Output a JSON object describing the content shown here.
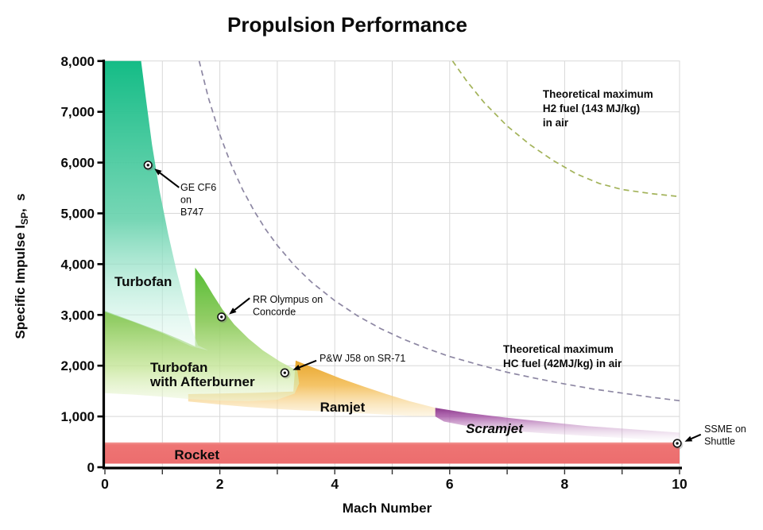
{
  "chart_data": {
    "type": "area",
    "title": "Propulsion Performance",
    "x_axis": {
      "label": "Mach Number",
      "min": 0,
      "max": 10,
      "gridline_step": 1,
      "tick_step": 1,
      "labeled_ticks": [
        0,
        2,
        4,
        6,
        8,
        10
      ]
    },
    "y_axis": {
      "label_main": "Specific Impulse I",
      "label_sub": "SP",
      "label_suffix": ",  s",
      "min": 0,
      "max": 8000,
      "gridline_step": 1000,
      "tick_labels": [
        {
          "value": 0,
          "text": "0"
        },
        {
          "value": 1000,
          "text": "1,000"
        },
        {
          "value": 2000,
          "text": "2,000"
        },
        {
          "value": 3000,
          "text": "3,000"
        },
        {
          "value": 4000,
          "text": "4,000"
        },
        {
          "value": 5000,
          "text": "5,000"
        },
        {
          "value": 6000,
          "text": "6,000"
        },
        {
          "value": 7000,
          "text": "7,000"
        },
        {
          "value": 8000,
          "text": "8,000"
        }
      ]
    },
    "colors": {
      "grid": "#d8d8d8",
      "axis": "#000000",
      "tick": "#333333",
      "h2_curve": "#a3b35a",
      "hc_curve": "#8d87a3",
      "callout_text": "#000000"
    },
    "regions": [
      {
        "name": "rocket",
        "label_lines": [
          "Rocket"
        ],
        "label_pos": [
          1.6,
          156
        ],
        "label_anchor": "middle",
        "italic": false,
        "points": [
          [
            0,
            490
          ],
          [
            10,
            490
          ],
          [
            10,
            70
          ],
          [
            0,
            70
          ]
        ],
        "stops": [
          [
            0,
            "#f29b97",
            1
          ],
          [
            0.12,
            "#ee7473",
            1
          ],
          [
            1,
            "#ec6d6e",
            1
          ]
        ]
      },
      {
        "name": "ramjet",
        "label_lines": [
          "Ramjet"
        ],
        "label_pos": [
          4.135,
          1095
        ],
        "label_anchor": "middle",
        "italic": false,
        "points": [
          [
            1.45,
            1440
          ],
          [
            2.0,
            1450
          ],
          [
            2.6,
            1465
          ],
          [
            3.28,
            1490
          ],
          [
            3.32,
            2100
          ],
          [
            3.7,
            1930
          ],
          [
            4.1,
            1750
          ],
          [
            4.5,
            1590
          ],
          [
            4.9,
            1440
          ],
          [
            5.3,
            1300
          ],
          [
            5.75,
            1170
          ],
          [
            5.78,
            1010
          ],
          [
            5.4,
            1005
          ],
          [
            5.0,
            1030
          ],
          [
            4.5,
            1060
          ],
          [
            4.0,
            1090
          ],
          [
            3.5,
            1115
          ],
          [
            3.0,
            1145
          ],
          [
            2.5,
            1185
          ],
          [
            2.0,
            1235
          ],
          [
            1.45,
            1295
          ]
        ],
        "stops": [
          [
            0,
            "#e8a62c",
            1
          ],
          [
            0.45,
            "#f4c160",
            0.95
          ],
          [
            1,
            "#fbeccb",
            0.5
          ]
        ]
      },
      {
        "name": "turbofan-afterburner",
        "label_lines": [
          "Turbofan",
          "with Afterburner"
        ],
        "label_pos": [
          0.788,
          1878
        ],
        "label_anchor": "start",
        "italic": false,
        "points": [
          [
            0,
            3080
          ],
          [
            0.5,
            2870
          ],
          [
            1.0,
            2660
          ],
          [
            1.3,
            2520
          ],
          [
            1.57,
            2380
          ],
          [
            1.57,
            3930
          ],
          [
            1.72,
            3700
          ],
          [
            1.88,
            3400
          ],
          [
            2.05,
            3100
          ],
          [
            2.25,
            2810
          ],
          [
            2.5,
            2530
          ],
          [
            2.75,
            2300
          ],
          [
            3.05,
            2080
          ],
          [
            3.35,
            1900
          ],
          [
            3.38,
            1650
          ],
          [
            3.3,
            1450
          ],
          [
            3.0,
            1330
          ],
          [
            2.5,
            1300
          ],
          [
            2.0,
            1310
          ],
          [
            1.5,
            1340
          ],
          [
            1.0,
            1390
          ],
          [
            0.5,
            1430
          ],
          [
            0,
            1460
          ]
        ],
        "stops": [
          [
            0,
            "#55bd33",
            1
          ],
          [
            0.4,
            "#8ecb5f",
            0.95
          ],
          [
            0.75,
            "#c6e699",
            0.8
          ],
          [
            1,
            "#ecf6d8",
            0.5
          ]
        ]
      },
      {
        "name": "turbofan",
        "label_lines": [
          "Turbofan"
        ],
        "label_pos": [
          0.166,
          3568
        ],
        "label_anchor": "start",
        "italic": false,
        "points": [
          [
            0,
            8000
          ],
          [
            0.63,
            8000
          ],
          [
            0.72,
            7200
          ],
          [
            0.82,
            6350
          ],
          [
            0.95,
            5450
          ],
          [
            1.1,
            4600
          ],
          [
            1.25,
            3850
          ],
          [
            1.4,
            3200
          ],
          [
            1.52,
            2700
          ],
          [
            1.62,
            2400
          ],
          [
            1.8,
            2300
          ],
          [
            1.5,
            2380
          ],
          [
            1.0,
            2640
          ],
          [
            0.5,
            2860
          ],
          [
            0,
            3060
          ]
        ],
        "stops": [
          [
            0,
            "#14bc86",
            1
          ],
          [
            0.55,
            "#68d2ad",
            0.9
          ],
          [
            0.85,
            "#bdeedd",
            0.55
          ],
          [
            1,
            "#e6f8f1",
            0.35
          ]
        ]
      },
      {
        "name": "scramjet",
        "label_lines": [
          "Scramjet"
        ],
        "label_pos": [
          6.777,
          673
        ],
        "label_anchor": "middle",
        "italic": true,
        "points": [
          [
            5.75,
            1170
          ],
          [
            6.3,
            1070
          ],
          [
            7.0,
            975
          ],
          [
            7.7,
            890
          ],
          [
            8.4,
            810
          ],
          [
            9.2,
            745
          ],
          [
            10,
            680
          ],
          [
            10,
            480
          ],
          [
            9.3,
            555
          ],
          [
            8.5,
            610
          ],
          [
            7.7,
            665
          ],
          [
            7.0,
            720
          ],
          [
            6.4,
            790
          ],
          [
            5.9,
            900
          ],
          [
            5.75,
            1000
          ]
        ],
        "stops": [
          [
            0,
            "#8c388c",
            1
          ],
          [
            0.25,
            "#a757a7",
            0.85
          ],
          [
            0.6,
            "#c897c8",
            0.45
          ],
          [
            1,
            "#eadaea",
            0
          ]
        ]
      }
    ],
    "curves": [
      {
        "name": "h2-max",
        "color": "#a3b35a",
        "label_lines": [
          "Theoretical maximum",
          "H2 fuel (143 MJ/kg)",
          "in air"
        ],
        "label_pos": [
          7.62,
          7277
        ],
        "points": [
          [
            6.05,
            8000
          ],
          [
            6.3,
            7600
          ],
          [
            6.6,
            7180
          ],
          [
            7.0,
            6720
          ],
          [
            7.4,
            6350
          ],
          [
            7.8,
            6040
          ],
          [
            8.2,
            5780
          ],
          [
            8.6,
            5590
          ],
          [
            9.0,
            5470
          ],
          [
            9.5,
            5390
          ],
          [
            10,
            5330
          ]
        ]
      },
      {
        "name": "hc-max",
        "color": "#8d87a3",
        "label_lines": [
          "Theoretical maximum",
          "HC fuel (42MJ/kg) in air"
        ],
        "label_pos": [
          6.93,
          2254
        ],
        "points": [
          [
            1.64,
            8000
          ],
          [
            1.8,
            7280
          ],
          [
            2.0,
            6550
          ],
          [
            2.2,
            5950
          ],
          [
            2.4,
            5460
          ],
          [
            2.6,
            5040
          ],
          [
            2.8,
            4680
          ],
          [
            3.0,
            4370
          ],
          [
            3.3,
            3970
          ],
          [
            3.6,
            3640
          ],
          [
            4.0,
            3280
          ],
          [
            4.4,
            2980
          ],
          [
            4.8,
            2730
          ],
          [
            5.2,
            2520
          ],
          [
            5.6,
            2340
          ],
          [
            6.0,
            2180
          ],
          [
            6.5,
            2020
          ],
          [
            7.0,
            1870
          ],
          [
            7.5,
            1750
          ],
          [
            8.0,
            1640
          ],
          [
            8.5,
            1540
          ],
          [
            9.0,
            1460
          ],
          [
            9.5,
            1380
          ],
          [
            10,
            1310
          ]
        ]
      }
    ],
    "engine_points": [
      {
        "name": "ge-cf6",
        "label_lines": [
          "GE CF6",
          "on",
          "B747"
        ],
        "point": [
          0.75,
          5950
        ],
        "text_pos": [
          1.314,
          5446
        ],
        "arrow_from": [
          1.29,
          5510
        ],
        "arrow_to": [
          0.86,
          5880
        ]
      },
      {
        "name": "rr-olympus",
        "label_lines": [
          "RR Olympus on",
          "Concorde"
        ],
        "point": [
          2.03,
          2960
        ],
        "text_pos": [
          2.573,
          3239
        ],
        "arrow_from": [
          2.52,
          3330
        ],
        "arrow_to": [
          2.16,
          3010
        ]
      },
      {
        "name": "pw-j58",
        "label_lines": [
          "P&W J58 on SR-71"
        ],
        "point": [
          3.13,
          1860
        ],
        "text_pos": [
          3.734,
          2081
        ],
        "arrow_from": [
          3.68,
          2100
        ],
        "arrow_to": [
          3.27,
          1915
        ]
      },
      {
        "name": "ssme",
        "label_lines": [
          "SSME on",
          "Shuttle"
        ],
        "point": [
          9.96,
          470
        ],
        "text_pos": [
          10.43,
          688
        ],
        "arrow_from": [
          10.37,
          645
        ],
        "arrow_to": [
          10.09,
          505
        ]
      }
    ]
  }
}
